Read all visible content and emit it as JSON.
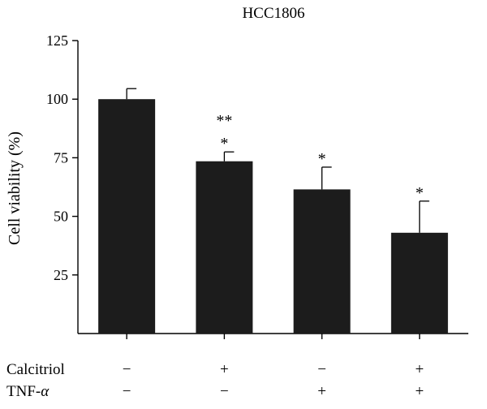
{
  "chart_data": {
    "type": "bar",
    "title": "HCC1806",
    "ylabel": "Cell viability (%)",
    "xlabel": "",
    "ylim": [
      0,
      125
    ],
    "yticks": [
      25,
      50,
      75,
      100,
      125
    ],
    "categories": [
      "1",
      "2",
      "3",
      "4"
    ],
    "values": [
      100,
      73.5,
      61.5,
      43
    ],
    "errors": [
      4.5,
      4,
      9.5,
      13.5
    ],
    "significance": [
      [],
      [
        "**",
        "*"
      ],
      [
        "*"
      ],
      [
        "*"
      ]
    ],
    "conditions": [
      {
        "label": "Calcitriol",
        "symbols": [
          "−",
          "+",
          "−",
          "+"
        ]
      },
      {
        "label": "TNF-",
        "italic_suffix": "α",
        "symbols": [
          "−",
          "−",
          "+",
          "+"
        ]
      }
    ],
    "bar_color": "#1c1c1c"
  }
}
